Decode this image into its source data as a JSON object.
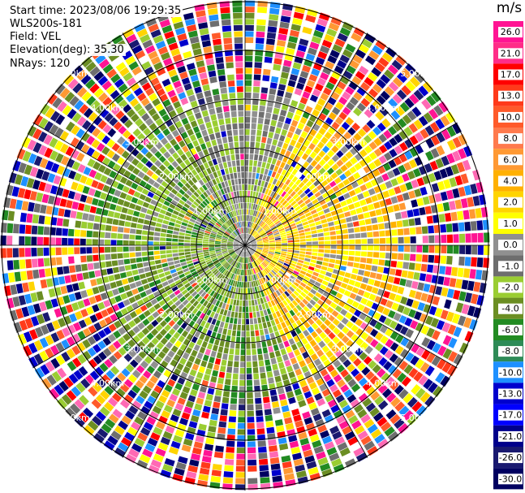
{
  "header": {
    "start_time": "Start time: 2023/08/06 19:29:35",
    "instrument": "WLS200s-181",
    "field": "Field: VEL",
    "elevation": "Elevation(deg): 35.30",
    "nrays": "NRays: 120"
  },
  "colorbar": {
    "unit": "m/s",
    "ticks": [
      "26.0",
      "21.0",
      "17.0",
      "13.0",
      "10.0",
      "8.0",
      "6.0",
      "4.0",
      "2.0",
      "1.0",
      "0.0",
      "-1.0",
      "-2.0",
      "-4.0",
      "-6.0",
      "-8.0",
      "-10.0",
      "-13.0",
      "-17.0",
      "-21.0",
      "-26.0",
      "-30.0"
    ],
    "colors": [
      "#ff1493",
      "#ff2d88",
      "#ff0000",
      "#ff3a1a",
      "#ff5a2a",
      "#ff7a4d",
      "#ff9933",
      "#ffb000",
      "#ffd400",
      "#ffff00",
      "#909090",
      "#6e6e6e",
      "#9acd32",
      "#6b8e23",
      "#228b22",
      "#2e8b57",
      "#1e90ff",
      "#0000cd",
      "#0000ff",
      "#00008b",
      "#191970",
      "#000060"
    ]
  },
  "chart_data": {
    "type": "ppi",
    "field": "VEL",
    "unit": "m/s",
    "nrays": 120,
    "ring_labels": [
      "1.00km",
      "2.00km",
      "3.00km",
      "4.00km",
      "5.00km"
    ],
    "grid": true
  }
}
